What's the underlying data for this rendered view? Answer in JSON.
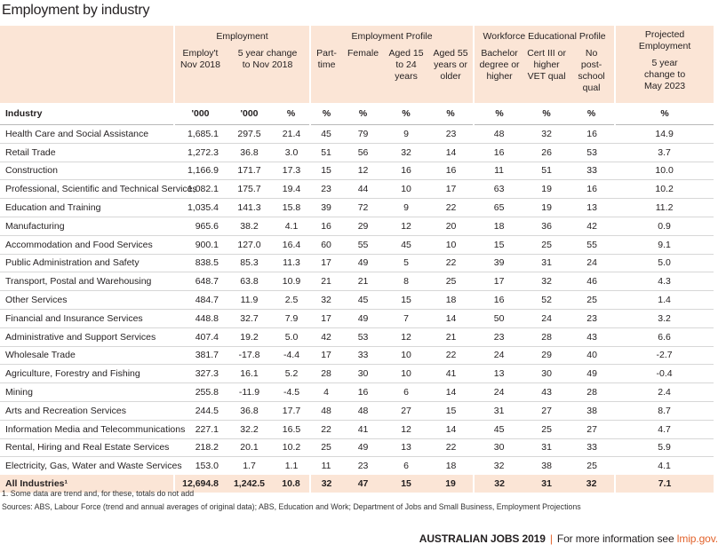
{
  "title": "Employment by industry",
  "groups": {
    "employment": "Employment",
    "profile": "Employment Profile",
    "education": "Workforce Educational Profile",
    "projected": "Projected Employment"
  },
  "subheaders": {
    "employ": "Employ't Nov 2018",
    "change": "5 year change to Nov 2018",
    "parttime": "Part-time",
    "female": "Female",
    "aged1524": "Aged 15 to 24 years",
    "aged55": "Aged 55 years or older",
    "bachelor": "Bachelor degree or higher",
    "cert": "Cert III or higher VET qual",
    "nopost": "No post-school qual",
    "proj": "5 year change to May 2023"
  },
  "units": [
    "Industry",
    "'000",
    "'000",
    "%",
    "%",
    "%",
    "%",
    "%",
    "%",
    "%",
    "%",
    "%"
  ],
  "rows": [
    [
      "Health Care and Social Assistance",
      "1,685.1",
      "297.5",
      "21.4",
      "45",
      "79",
      "9",
      "23",
      "48",
      "32",
      "16",
      "14.9"
    ],
    [
      "Retail Trade",
      "1,272.3",
      "36.8",
      "3.0",
      "51",
      "56",
      "32",
      "14",
      "16",
      "26",
      "53",
      "3.7"
    ],
    [
      "Construction",
      "1,166.9",
      "171.7",
      "17.3",
      "15",
      "12",
      "16",
      "16",
      "11",
      "51",
      "33",
      "10.0"
    ],
    [
      "Professional, Scientific and Technical Services",
      "1,082.1",
      "175.7",
      "19.4",
      "23",
      "44",
      "10",
      "17",
      "63",
      "19",
      "16",
      "10.2"
    ],
    [
      "Education and Training",
      "1,035.4",
      "141.3",
      "15.8",
      "39",
      "72",
      "9",
      "22",
      "65",
      "19",
      "13",
      "11.2"
    ],
    [
      "Manufacturing",
      "965.6",
      "38.2",
      "4.1",
      "16",
      "29",
      "12",
      "20",
      "18",
      "36",
      "42",
      "0.9"
    ],
    [
      "Accommodation and Food Services",
      "900.1",
      "127.0",
      "16.4",
      "60",
      "55",
      "45",
      "10",
      "15",
      "25",
      "55",
      "9.1"
    ],
    [
      "Public Administration and Safety",
      "838.5",
      "85.3",
      "11.3",
      "17",
      "49",
      "5",
      "22",
      "39",
      "31",
      "24",
      "5.0"
    ],
    [
      "Transport, Postal and Warehousing",
      "648.7",
      "63.8",
      "10.9",
      "21",
      "21",
      "8",
      "25",
      "17",
      "32",
      "46",
      "4.3"
    ],
    [
      "Other Services",
      "484.7",
      "11.9",
      "2.5",
      "32",
      "45",
      "15",
      "18",
      "16",
      "52",
      "25",
      "1.4"
    ],
    [
      "Financial and Insurance Services",
      "448.8",
      "32.7",
      "7.9",
      "17",
      "49",
      "7",
      "14",
      "50",
      "24",
      "23",
      "3.2"
    ],
    [
      "Administrative and Support Services",
      "407.4",
      "19.2",
      "5.0",
      "42",
      "53",
      "12",
      "21",
      "23",
      "28",
      "43",
      "6.6"
    ],
    [
      "Wholesale Trade",
      "381.7",
      "-17.8",
      "-4.4",
      "17",
      "33",
      "10",
      "22",
      "24",
      "29",
      "40",
      "-2.7"
    ],
    [
      "Agriculture, Forestry and Fishing",
      "327.3",
      "16.1",
      "5.2",
      "28",
      "30",
      "10",
      "41",
      "13",
      "30",
      "49",
      "-0.4"
    ],
    [
      "Mining",
      "255.8",
      "-11.9",
      "-4.5",
      "4",
      "16",
      "6",
      "14",
      "24",
      "43",
      "28",
      "2.4"
    ],
    [
      "Arts and Recreation Services",
      "244.5",
      "36.8",
      "17.7",
      "48",
      "48",
      "27",
      "15",
      "31",
      "27",
      "38",
      "8.7"
    ],
    [
      "Information Media and Telecommunications",
      "227.1",
      "32.2",
      "16.5",
      "22",
      "41",
      "12",
      "14",
      "45",
      "25",
      "27",
      "4.7"
    ],
    [
      "Rental, Hiring and Real Estate Services",
      "218.2",
      "20.1",
      "10.2",
      "25",
      "49",
      "13",
      "22",
      "30",
      "31",
      "33",
      "5.9"
    ],
    [
      "Electricity, Gas, Water and Waste Services",
      "153.0",
      "1.7",
      "1.1",
      "11",
      "23",
      "6",
      "18",
      "32",
      "38",
      "25",
      "4.1"
    ]
  ],
  "total": [
    "All Industries¹",
    "12,694.8",
    "1,242.5",
    "10.8",
    "32",
    "47",
    "15",
    "19",
    "32",
    "31",
    "32",
    "7.1"
  ],
  "footnotes": {
    "note1": "1. Some data are trend and, for these, totals do not add",
    "sources": "Sources: ABS, Labour Force (trend and annual averages of original data); ABS, Education and Work; Department of Jobs and Small Business, Employment Projections"
  },
  "brand": {
    "name": "AUSTRALIAN JOBS 2019",
    "separator": "|",
    "tagline": "For more information see",
    "link": "lmip.gov."
  },
  "colors": {
    "header_bg": "#fbe5d6",
    "accent": "#e2622b"
  }
}
